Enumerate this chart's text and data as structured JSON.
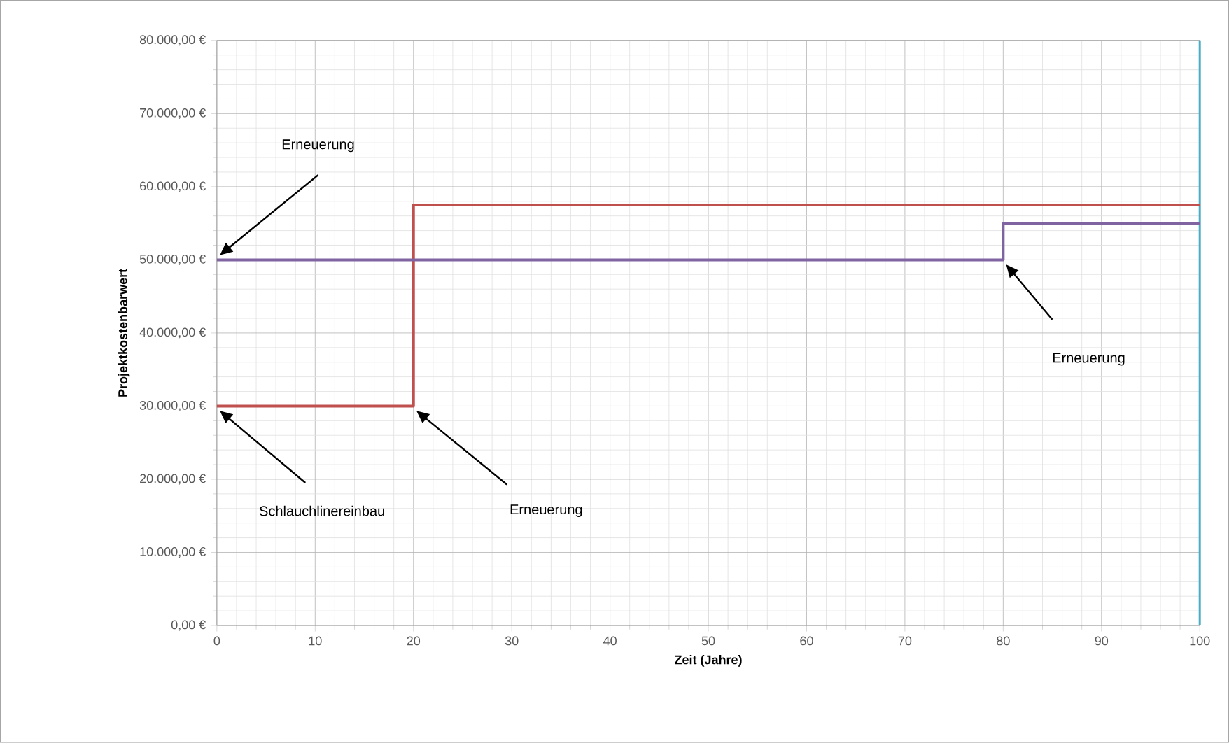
{
  "chart_data": {
    "type": "step",
    "xlabel": "Zeit (Jahre)",
    "ylabel": "Projektkostenbarwert",
    "xlim": [
      0,
      100
    ],
    "xticks": [
      0,
      10,
      20,
      30,
      40,
      50,
      60,
      70,
      80,
      90,
      100
    ],
    "ylim": [
      0,
      80000
    ],
    "yticks": [
      {
        "value": 0,
        "label": "0,00 €"
      },
      {
        "value": 10000,
        "label": "10.000,00 €"
      },
      {
        "value": 20000,
        "label": "20.000,00 €"
      },
      {
        "value": 30000,
        "label": "30.000,00 €"
      },
      {
        "value": 40000,
        "label": "40.000,00 €"
      },
      {
        "value": 50000,
        "label": "50.000,00 €"
      },
      {
        "value": 60000,
        "label": "60.000,00 €"
      },
      {
        "value": 70000,
        "label": "70.000,00 €"
      },
      {
        "value": 80000,
        "label": "80.000,00 €"
      }
    ],
    "grid": true,
    "series": [
      {
        "color": "#c0504d",
        "x": [
          0,
          20,
          100
        ],
        "values": [
          30000,
          57500,
          57500
        ]
      },
      {
        "color": "#8064a2",
        "x": [
          0,
          80,
          100
        ],
        "values": [
          50000,
          55000,
          55000
        ]
      }
    ],
    "ref_lines": [
      {
        "axis": "x",
        "value": 100,
        "color": "#4bacc6"
      }
    ],
    "annotations": [
      "Erneuerung",
      "Schlauchlinereinbau",
      "Erneuerung",
      "Erneuerung"
    ]
  }
}
